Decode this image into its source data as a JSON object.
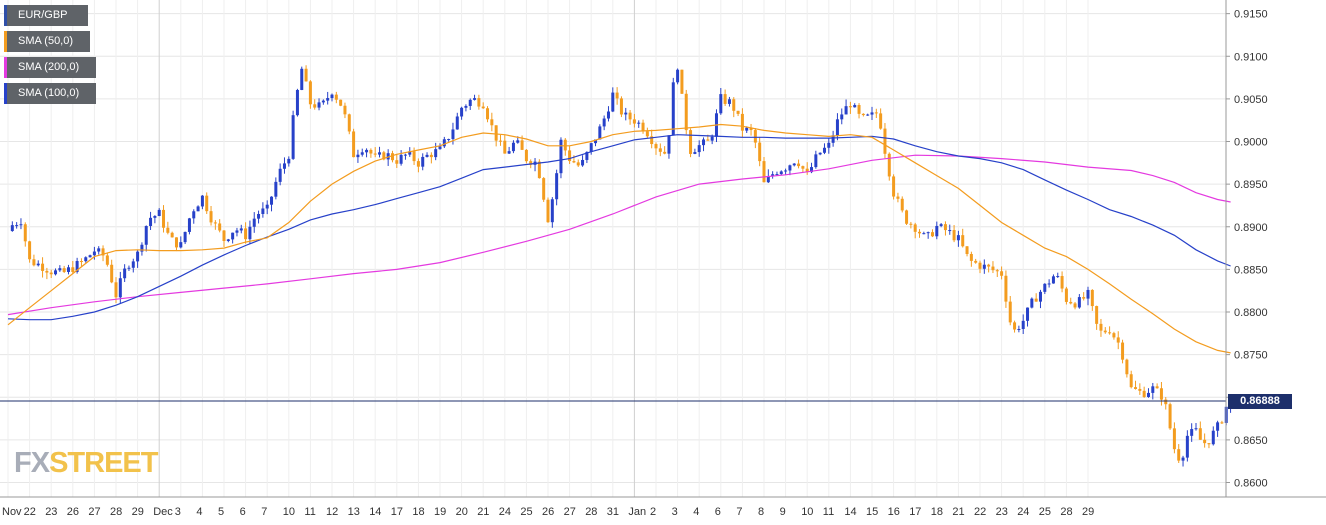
{
  "chart_data": {
    "type": "candlestick",
    "symbol": "EUR/GBP",
    "legend": [
      {
        "label": "EUR/GBP",
        "color": "#2f4fa8"
      },
      {
        "label": "SMA (50,0)",
        "color": "#f39c1f"
      },
      {
        "label": "SMA (200,0)",
        "color": "#e43ae0"
      },
      {
        "label": "SMA (100,0)",
        "color": "#2741c9"
      }
    ],
    "current_price": 0.86888,
    "current_price_label": "0.86888",
    "ylim": [
      0.8583,
      0.9166
    ],
    "y_ticks": [
      "0.9150",
      "0.9100",
      "0.9050",
      "0.9000",
      "0.8950",
      "0.8900",
      "0.8850",
      "0.8800",
      "0.8750",
      "0.8700",
      "0.8650",
      "0.8600"
    ],
    "x_ticks": [
      "Nov",
      "22",
      "23",
      "26",
      "27",
      "28",
      "29",
      "Dec",
      "3",
      "4",
      "5",
      "6",
      "7",
      "10",
      "11",
      "12",
      "13",
      "14",
      "17",
      "18",
      "19",
      "20",
      "21",
      "24",
      "25",
      "26",
      "27",
      "28",
      "31",
      "Jan",
      "2",
      "3",
      "4",
      "6",
      "7",
      "8",
      "9",
      "10",
      "11",
      "14",
      "15",
      "16",
      "17",
      "18",
      "21",
      "22",
      "23",
      "24",
      "25",
      "28",
      "29"
    ],
    "period_boundaries": [
      "Dec",
      "Jan"
    ],
    "up_color": "#2741c9",
    "down_color": "#f39c1f",
    "price_anchors": [
      [
        0.0,
        0.8895
      ],
      [
        0.2,
        0.8902
      ],
      [
        0.6,
        0.8908
      ],
      [
        1.0,
        0.886
      ],
      [
        1.5,
        0.8855
      ],
      [
        2.0,
        0.8848
      ],
      [
        2.5,
        0.8845
      ],
      [
        3.0,
        0.8852
      ],
      [
        3.5,
        0.886
      ],
      [
        4.0,
        0.8872
      ],
      [
        4.5,
        0.8865
      ],
      [
        5.0,
        0.882
      ],
      [
        5.5,
        0.8855
      ],
      [
        6.0,
        0.8868
      ],
      [
        6.5,
        0.891
      ],
      [
        7.0,
        0.8915
      ],
      [
        7.5,
        0.8885
      ],
      [
        8.0,
        0.8878
      ],
      [
        8.5,
        0.8918
      ],
      [
        9.0,
        0.8935
      ],
      [
        9.5,
        0.8905
      ],
      [
        10.0,
        0.8885
      ],
      [
        10.5,
        0.8898
      ],
      [
        11.0,
        0.889
      ],
      [
        11.5,
        0.8915
      ],
      [
        12.0,
        0.892
      ],
      [
        12.5,
        0.896
      ],
      [
        13.0,
        0.8985
      ],
      [
        13.3,
        0.9045
      ],
      [
        13.6,
        0.9085
      ],
      [
        14.0,
        0.9045
      ],
      [
        14.5,
        0.904
      ],
      [
        15.0,
        0.906
      ],
      [
        15.5,
        0.904
      ],
      [
        16.0,
        0.8985
      ],
      [
        16.5,
        0.8995
      ],
      [
        17.0,
        0.898
      ],
      [
        17.5,
        0.8985
      ],
      [
        18.0,
        0.8978
      ],
      [
        18.5,
        0.8985
      ],
      [
        19.0,
        0.8975
      ],
      [
        19.5,
        0.8985
      ],
      [
        20.0,
        0.899
      ],
      [
        20.5,
        0.901
      ],
      [
        21.0,
        0.904
      ],
      [
        21.5,
        0.905
      ],
      [
        22.0,
        0.9045
      ],
      [
        22.5,
        0.901
      ],
      [
        23.0,
        0.8985
      ],
      [
        23.5,
        0.9
      ],
      [
        24.0,
        0.898
      ],
      [
        24.5,
        0.8975
      ],
      [
        25.0,
        0.891
      ],
      [
        25.3,
        0.8945
      ],
      [
        25.6,
        0.9
      ],
      [
        26.0,
        0.898
      ],
      [
        26.5,
        0.897
      ],
      [
        27.0,
        0.8995
      ],
      [
        27.5,
        0.902
      ],
      [
        28.0,
        0.9055
      ],
      [
        28.5,
        0.903
      ],
      [
        29.0,
        0.9025
      ],
      [
        29.5,
        0.9015
      ],
      [
        30.0,
        0.8995
      ],
      [
        30.5,
        0.8985
      ],
      [
        30.8,
        0.9065
      ],
      [
        31.0,
        0.909
      ],
      [
        31.3,
        0.903
      ],
      [
        31.6,
        0.899
      ],
      [
        32.0,
        0.8995
      ],
      [
        32.5,
        0.9
      ],
      [
        33.0,
        0.905
      ],
      [
        33.5,
        0.9045
      ],
      [
        34.0,
        0.9015
      ],
      [
        34.5,
        0.901
      ],
      [
        35.0,
        0.895
      ],
      [
        35.5,
        0.8965
      ],
      [
        36.0,
        0.897
      ],
      [
        36.5,
        0.898
      ],
      [
        37.0,
        0.896
      ],
      [
        37.5,
        0.8985
      ],
      [
        38.0,
        0.8995
      ],
      [
        38.5,
        0.903
      ],
      [
        39.0,
        0.9045
      ],
      [
        39.5,
        0.9025
      ],
      [
        40.0,
        0.903
      ],
      [
        40.3,
        0.9035
      ],
      [
        40.6,
        0.899
      ],
      [
        41.0,
        0.894
      ],
      [
        41.5,
        0.891
      ],
      [
        42.0,
        0.89
      ],
      [
        42.5,
        0.8885
      ],
      [
        43.0,
        0.89
      ],
      [
        43.5,
        0.8895
      ],
      [
        44.0,
        0.8885
      ],
      [
        44.5,
        0.886
      ],
      [
        45.0,
        0.8855
      ],
      [
        45.5,
        0.885
      ],
      [
        46.0,
        0.8845
      ],
      [
        46.5,
        0.8775
      ],
      [
        47.0,
        0.879
      ],
      [
        47.5,
        0.8815
      ],
      [
        48.0,
        0.883
      ],
      [
        48.5,
        0.8845
      ],
      [
        49.0,
        0.8815
      ],
      [
        49.5,
        0.881
      ],
      [
        50.0,
        0.882
      ],
      [
        50.5,
        0.8775
      ],
      [
        51.0,
        0.878
      ],
      [
        51.5,
        0.876
      ],
      [
        52.0,
        0.871
      ],
      [
        52.5,
        0.8705
      ],
      [
        53.0,
        0.871
      ],
      [
        53.5,
        0.87
      ],
      [
        54.0,
        0.864
      ],
      [
        54.3,
        0.8625
      ],
      [
        54.6,
        0.8655
      ],
      [
        55.0,
        0.866
      ],
      [
        55.3,
        0.8645
      ],
      [
        55.6,
        0.865
      ],
      [
        56.0,
        0.8665
      ],
      [
        56.3,
        0.868
      ],
      [
        56.6,
        0.8688
      ]
    ],
    "sma50": [
      [
        0.0,
        0.8785
      ],
      [
        1.0,
        0.8805
      ],
      [
        2.0,
        0.8825
      ],
      [
        3.0,
        0.8845
      ],
      [
        4.0,
        0.8865
      ],
      [
        5.0,
        0.8872
      ],
      [
        6.0,
        0.8873
      ],
      [
        7.0,
        0.8872
      ],
      [
        8.0,
        0.8872
      ],
      [
        9.0,
        0.8873
      ],
      [
        10.0,
        0.8875
      ],
      [
        11.0,
        0.8882
      ],
      [
        12.0,
        0.8887
      ],
      [
        13.0,
        0.8905
      ],
      [
        14.0,
        0.893
      ],
      [
        15.0,
        0.895
      ],
      [
        16.0,
        0.8965
      ],
      [
        17.0,
        0.8977
      ],
      [
        18.0,
        0.8985
      ],
      [
        19.0,
        0.899
      ],
      [
        20.0,
        0.8995
      ],
      [
        21.0,
        0.9005
      ],
      [
        22.0,
        0.901
      ],
      [
        23.0,
        0.9008
      ],
      [
        24.0,
        0.9003
      ],
      [
        25.0,
        0.8995
      ],
      [
        26.0,
        0.8995
      ],
      [
        27.0,
        0.9
      ],
      [
        28.0,
        0.9008
      ],
      [
        29.0,
        0.9012
      ],
      [
        30.0,
        0.9013
      ],
      [
        31.0,
        0.9015
      ],
      [
        32.0,
        0.9017
      ],
      [
        33.0,
        0.902
      ],
      [
        34.0,
        0.9018
      ],
      [
        35.0,
        0.9013
      ],
      [
        36.0,
        0.901
      ],
      [
        37.0,
        0.9008
      ],
      [
        38.0,
        0.9006
      ],
      [
        39.0,
        0.9008
      ],
      [
        40.0,
        0.9005
      ],
      [
        41.0,
        0.899
      ],
      [
        42.0,
        0.8975
      ],
      [
        43.0,
        0.896
      ],
      [
        44.0,
        0.8945
      ],
      [
        45.0,
        0.8925
      ],
      [
        46.0,
        0.8905
      ],
      [
        47.0,
        0.889
      ],
      [
        48.0,
        0.8875
      ],
      [
        49.0,
        0.8865
      ],
      [
        50.0,
        0.885
      ],
      [
        51.0,
        0.8833
      ],
      [
        52.0,
        0.8815
      ],
      [
        53.0,
        0.8798
      ],
      [
        54.0,
        0.878
      ],
      [
        55.0,
        0.8765
      ],
      [
        56.0,
        0.8755
      ],
      [
        56.6,
        0.8752
      ]
    ],
    "sma100": [
      [
        0.0,
        0.8792
      ],
      [
        1.0,
        0.8791
      ],
      [
        2.0,
        0.8791
      ],
      [
        3.0,
        0.8795
      ],
      [
        4.0,
        0.88
      ],
      [
        5.0,
        0.8808
      ],
      [
        6.0,
        0.8818
      ],
      [
        7.0,
        0.883
      ],
      [
        8.0,
        0.8842
      ],
      [
        9.0,
        0.8855
      ],
      [
        10.0,
        0.8867
      ],
      [
        11.0,
        0.8878
      ],
      [
        12.0,
        0.8888
      ],
      [
        13.0,
        0.8897
      ],
      [
        14.0,
        0.8908
      ],
      [
        15.0,
        0.8915
      ],
      [
        16.0,
        0.892
      ],
      [
        17.0,
        0.8926
      ],
      [
        18.0,
        0.8933
      ],
      [
        19.0,
        0.894
      ],
      [
        20.0,
        0.8947
      ],
      [
        21.0,
        0.8957
      ],
      [
        22.0,
        0.8967
      ],
      [
        23.0,
        0.897
      ],
      [
        24.0,
        0.8973
      ],
      [
        25.0,
        0.8976
      ],
      [
        26.0,
        0.898
      ],
      [
        27.0,
        0.8988
      ],
      [
        28.0,
        0.8995
      ],
      [
        29.0,
        0.9002
      ],
      [
        30.0,
        0.9005
      ],
      [
        31.0,
        0.9008
      ],
      [
        32.0,
        0.9007
      ],
      [
        33.0,
        0.9006
      ],
      [
        34.0,
        0.9005
      ],
      [
        35.0,
        0.9005
      ],
      [
        36.0,
        0.9004
      ],
      [
        37.0,
        0.9004
      ],
      [
        38.0,
        0.9004
      ],
      [
        39.0,
        0.9005
      ],
      [
        40.0,
        0.9006
      ],
      [
        41.0,
        0.9003
      ],
      [
        42.0,
        0.8995
      ],
      [
        43.0,
        0.8988
      ],
      [
        44.0,
        0.8983
      ],
      [
        45.0,
        0.898
      ],
      [
        46.0,
        0.8975
      ],
      [
        47.0,
        0.8967
      ],
      [
        48.0,
        0.8955
      ],
      [
        49.0,
        0.8943
      ],
      [
        50.0,
        0.8932
      ],
      [
        51.0,
        0.892
      ],
      [
        52.0,
        0.8912
      ],
      [
        53.0,
        0.8902
      ],
      [
        54.0,
        0.889
      ],
      [
        55.0,
        0.8873
      ],
      [
        56.0,
        0.886
      ],
      [
        56.6,
        0.8854
      ]
    ],
    "sma200": [
      [
        0.0,
        0.8797
      ],
      [
        2.0,
        0.8805
      ],
      [
        4.0,
        0.8812
      ],
      [
        6.0,
        0.8818
      ],
      [
        8.0,
        0.8823
      ],
      [
        10.0,
        0.8828
      ],
      [
        12.0,
        0.8833
      ],
      [
        14.0,
        0.8839
      ],
      [
        16.0,
        0.8845
      ],
      [
        18.0,
        0.885
      ],
      [
        20.0,
        0.8858
      ],
      [
        22.0,
        0.887
      ],
      [
        24.0,
        0.8883
      ],
      [
        26.0,
        0.8897
      ],
      [
        28.0,
        0.8915
      ],
      [
        30.0,
        0.8935
      ],
      [
        32.0,
        0.895
      ],
      [
        34.0,
        0.8956
      ],
      [
        36.0,
        0.8961
      ],
      [
        38.0,
        0.8968
      ],
      [
        40.0,
        0.8978
      ],
      [
        42.0,
        0.8984
      ],
      [
        44.0,
        0.8983
      ],
      [
        46.0,
        0.898
      ],
      [
        48.0,
        0.8976
      ],
      [
        50.0,
        0.897
      ],
      [
        52.0,
        0.8966
      ],
      [
        53.0,
        0.896
      ],
      [
        54.0,
        0.8952
      ],
      [
        55.0,
        0.894
      ],
      [
        56.0,
        0.8932
      ],
      [
        56.6,
        0.8929
      ]
    ],
    "grid": true
  },
  "logo": {
    "fx": "FX",
    "street": "STREET"
  }
}
